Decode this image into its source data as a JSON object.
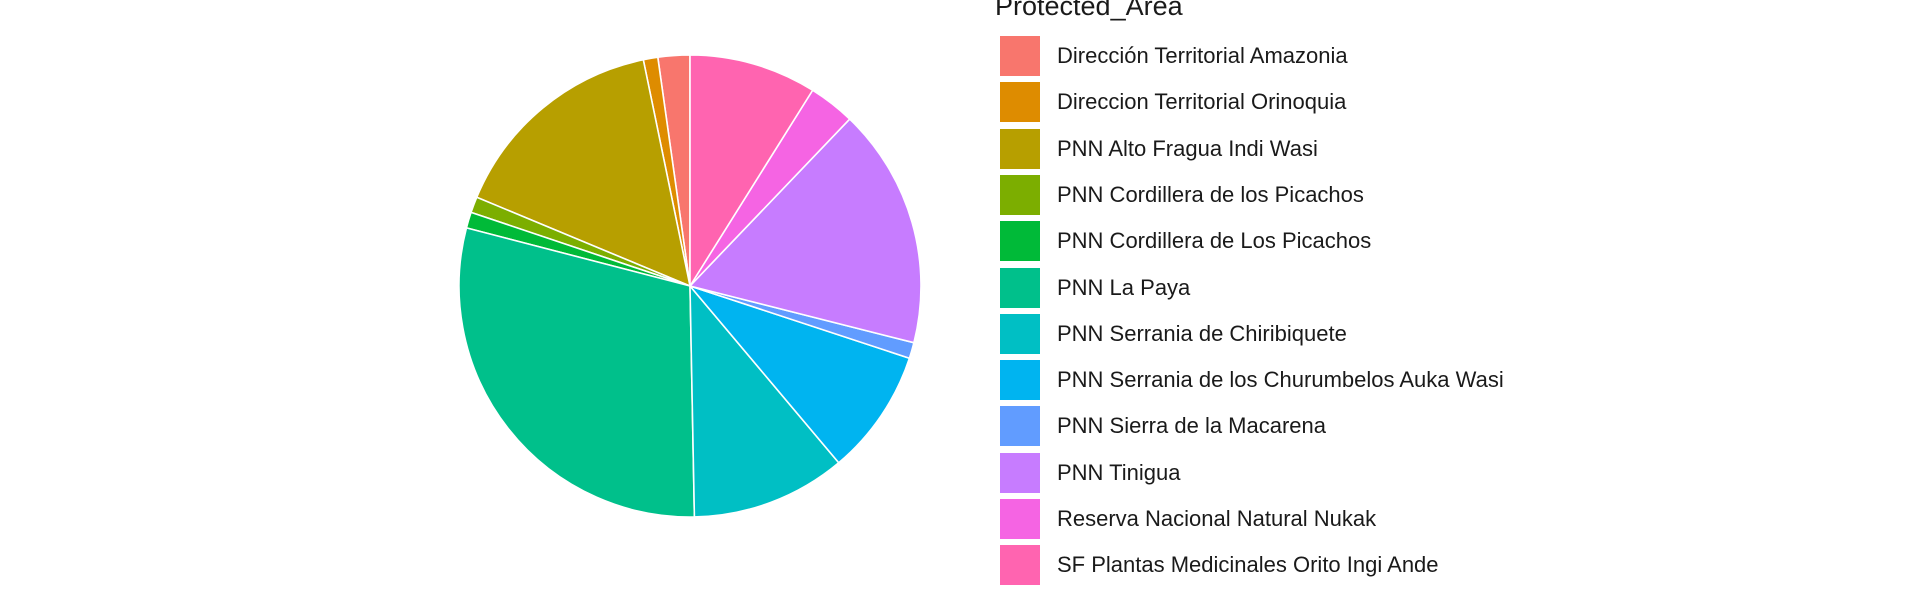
{
  "chart_data": {
    "type": "pie",
    "legend_title": "Protected_Area",
    "legend_position": "right",
    "grid": false,
    "slices": [
      {
        "label": "Dirección Territorial Amazonia",
        "value": 2.2,
        "color": "#F8766D"
      },
      {
        "label": "Direccion Territorial Orinoquia",
        "value": 1.0,
        "color": "#DE8C00"
      },
      {
        "label": "PNN Alto Fragua Indi Wasi",
        "value": 15.3,
        "color": "#B79F00"
      },
      {
        "label": "PNN Cordillera de los Picachos",
        "value": 1.1,
        "color": "#7CAE00"
      },
      {
        "label": "PNN Cordillera de Los Picachos",
        "value": 1.1,
        "color": "#00BA38"
      },
      {
        "label": "PNN La Paya",
        "value": 29.0,
        "color": "#00C08B"
      },
      {
        "label": "PNN Serrania de Chiribiquete",
        "value": 10.7,
        "color": "#00BFC4"
      },
      {
        "label": "PNN Serrania de los Churumbelos Auka Wasi",
        "value": 8.7,
        "color": "#00B4F0"
      },
      {
        "label": "PNN Sierra de la Macarena",
        "value": 1.1,
        "color": "#619CFF"
      },
      {
        "label": "PNN Tinigua",
        "value": 16.6,
        "color": "#C77CFF"
      },
      {
        "label": "Reserva Nacional Natural Nukak",
        "value": 3.2,
        "color": "#F564E3"
      },
      {
        "label": "SF Plantas Medicinales Orito Ingi Ande",
        "value": 8.8,
        "color": "#FF64B0"
      }
    ]
  }
}
